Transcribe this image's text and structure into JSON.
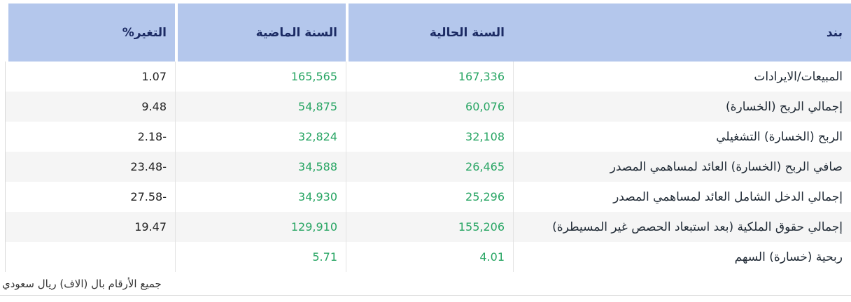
{
  "table": {
    "headers": {
      "item": "بند",
      "current_year": "السنة الحالية",
      "previous_year": "السنة الماضية",
      "change_pct": "التغير%"
    },
    "rows": [
      {
        "item": "المبيعات/الايرادات",
        "current": "167,336",
        "previous": "165,565",
        "change": "1.07"
      },
      {
        "item": "إجمالي الربح (الخسارة)",
        "current": "60,076",
        "previous": "54,875",
        "change": "9.48"
      },
      {
        "item": "الربح (الخسارة) التشغيلي",
        "current": "32,108",
        "previous": "32,824",
        "change": "2.18-"
      },
      {
        "item": "صافي الربح (الخسارة) العائد لمساهمي المصدر",
        "current": "26,465",
        "previous": "34,588",
        "change": "23.48-"
      },
      {
        "item": "إجمالي الدخل الشامل العائد لمساهمي المصدر",
        "current": "25,296",
        "previous": "34,930",
        "change": "27.58-"
      },
      {
        "item": "إجمالي حقوق الملكية (بعد استبعاد الحصص غير المسيطرة)",
        "current": "155,206",
        "previous": "129,910",
        "change": "19.47"
      },
      {
        "item": "ربحية (خسارة) السهم",
        "current": "4.01",
        "previous": "5.71",
        "change": ""
      }
    ],
    "footnote": "جميع الأرقام بال (الاف) ريال سعودي"
  },
  "colors": {
    "header_bg": "#b4c7ec",
    "header_text": "#1b2a63",
    "value_green": "#27a563",
    "item_text": "#212b36",
    "change_text": "#212121",
    "row_alt_bg": "#f5f5f5",
    "divider": "#e3e3e3"
  }
}
